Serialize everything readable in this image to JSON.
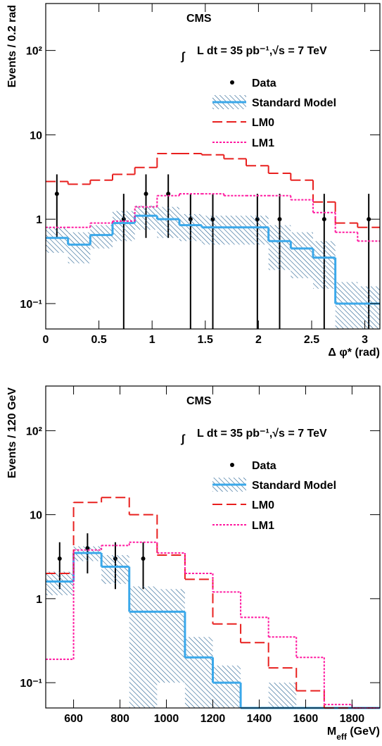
{
  "chart_data": [
    {
      "type": "histogram",
      "ylabel": "Events / 0.2 rad",
      "xlabel": [
        "Δ φ* (rad)"
      ],
      "annotation": {
        "experiment": "CMS",
        "integral": "∫",
        "lumi": "L dt = 35 pb⁻¹,√s = 7 TeV"
      },
      "bins": [
        0,
        0.2094,
        0.4189,
        0.6283,
        0.8378,
        1.0472,
        1.2566,
        1.4661,
        1.6755,
        1.885,
        2.0944,
        2.3038,
        2.5133,
        2.7227,
        2.9322,
        3.1416
      ],
      "xlim": [
        0,
        3.1416
      ],
      "xticks": [
        0,
        0.5,
        1,
        1.5,
        2,
        2.5,
        3
      ],
      "ylim": [
        0.05,
        360
      ],
      "ylog": true,
      "yticks": [
        {
          "value": 0.1,
          "label": "10⁻¹"
        },
        1,
        10,
        {
          "value": 100,
          "label": "10²"
        }
      ],
      "legend": "upper right",
      "series": [
        {
          "name": "Data",
          "style": "points",
          "color": "#000000",
          "values": [
            2,
            null,
            null,
            1,
            2,
            2,
            1,
            1,
            null,
            1,
            1,
            null,
            1,
            null,
            1
          ],
          "err_high": [
            1.4,
            null,
            null,
            1,
            1.4,
            1.4,
            1,
            1,
            null,
            1,
            1,
            null,
            1,
            null,
            1
          ],
          "err_low": [
            1.4,
            null,
            null,
            1,
            1.4,
            1.4,
            1,
            1,
            null,
            1,
            1,
            null,
            1,
            null,
            1
          ]
        },
        {
          "name": "Standard Model",
          "style": "band",
          "color": "#3aa8ea",
          "hatch_color": "#1f5d8f",
          "values": [
            0.6,
            0.5,
            0.65,
            0.9,
            1.1,
            1.0,
            0.85,
            0.8,
            0.8,
            0.8,
            0.55,
            0.45,
            0.35,
            0.1,
            0.1
          ],
          "errors": [
            0.2,
            0.2,
            0.2,
            0.35,
            0.35,
            0.4,
            0.3,
            0.3,
            0.3,
            0.3,
            0.3,
            0.25,
            0.2,
            0.08,
            0.06
          ]
        },
        {
          "name": "LM0",
          "style": "dashed",
          "color": "#e8201f",
          "values": [
            2.8,
            2.6,
            2.9,
            3.4,
            4.1,
            6.0,
            6.0,
            5.8,
            5.2,
            4.3,
            3.5,
            2.9,
            1.6,
            0.9,
            0.8
          ]
        },
        {
          "name": "LM1",
          "style": "dotted",
          "color": "#ff1aa0",
          "values": [
            0.8,
            0.8,
            0.9,
            0.95,
            1.4,
            1.9,
            2.0,
            2.0,
            1.9,
            1.9,
            1.9,
            1.7,
            1.2,
            0.7,
            0.55
          ]
        }
      ]
    },
    {
      "type": "histogram",
      "ylabel": "Events / 120 GeV",
      "xlabel": [
        "M",
        "eff",
        " (GeV)"
      ],
      "annotation": {
        "experiment": "CMS",
        "integral": "∫",
        "lumi": "L dt = 35 pb⁻¹,√s = 7 TeV"
      },
      "bins": [
        480,
        600,
        720,
        840,
        960,
        1080,
        1200,
        1320,
        1440,
        1560,
        1680,
        1800,
        1920
      ],
      "xlim": [
        480,
        1920
      ],
      "xticks": [
        600,
        800,
        1000,
        1200,
        1400,
        1600,
        1800
      ],
      "ylim": [
        0.05,
        340
      ],
      "ylog": true,
      "yticks": [
        {
          "value": 0.1,
          "label": "10⁻¹"
        },
        1,
        10,
        {
          "value": 100,
          "label": "10²"
        }
      ],
      "legend": "upper right",
      "series": [
        {
          "name": "Data",
          "style": "points",
          "color": "#000000",
          "values": [
            3,
            4,
            3,
            3,
            null,
            null,
            null,
            null,
            null,
            null,
            null,
            null
          ],
          "err_high": [
            1.7,
            2.0,
            1.7,
            1.7,
            null,
            null,
            null,
            null,
            null,
            null,
            null,
            null
          ],
          "err_low": [
            1.7,
            2.0,
            1.7,
            1.7,
            null,
            null,
            null,
            null,
            null,
            null,
            null,
            null
          ]
        },
        {
          "name": "Standard Model",
          "style": "band",
          "color": "#3aa8ea",
          "hatch_color": "#1f5d8f",
          "values": [
            1.6,
            3.5,
            2.4,
            0.7,
            0.7,
            0.2,
            0.1,
            0,
            0,
            0,
            0,
            0
          ],
          "errors": [
            0.5,
            0.7,
            0.9,
            0.7,
            0.6,
            0.15,
            0.06,
            0,
            0.1,
            0,
            0,
            0
          ]
        },
        {
          "name": "LM0",
          "style": "dashed",
          "color": "#e8201f",
          "values": [
            2.0,
            14,
            16,
            10,
            3.3,
            1.7,
            0.5,
            0.3,
            0.15,
            0.08,
            0.05,
            0.05
          ]
        },
        {
          "name": "LM1",
          "style": "dotted",
          "color": "#ff1aa0",
          "values": [
            0.19,
            3.8,
            4.3,
            4.7,
            3.5,
            2.0,
            1.2,
            0.6,
            0.35,
            0.2,
            0.055,
            0.05
          ]
        }
      ]
    }
  ]
}
